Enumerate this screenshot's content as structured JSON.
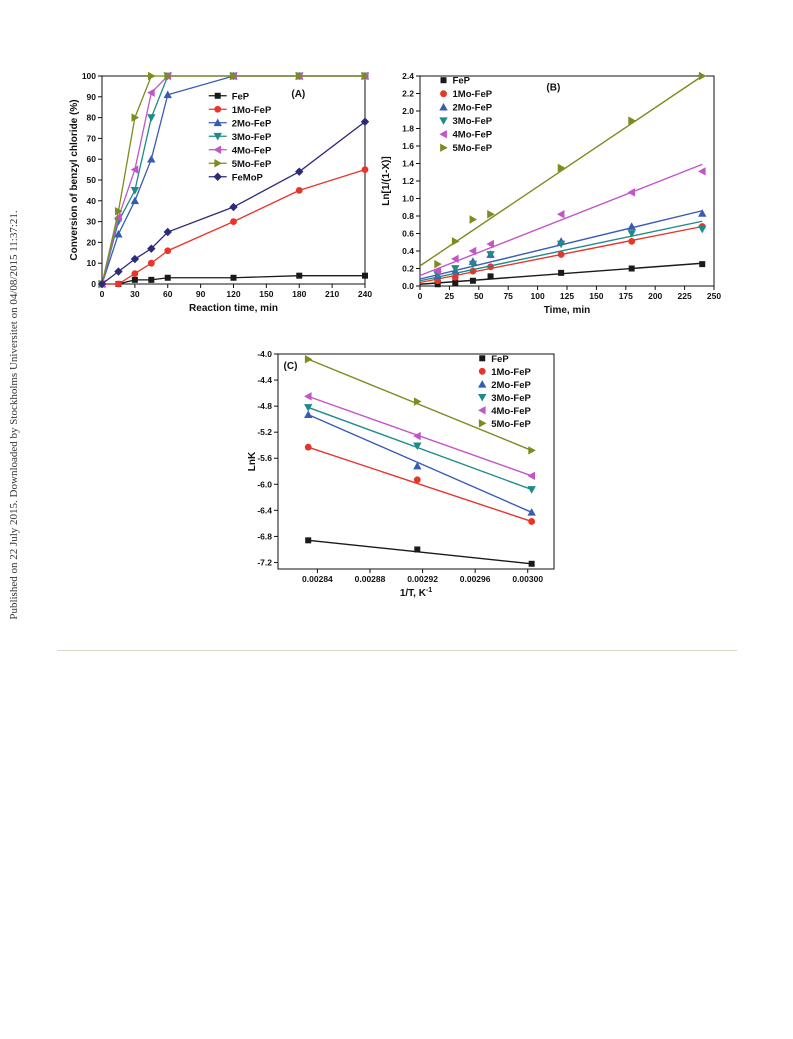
{
  "sidebar_text": "Published on 22 July 2015. Downloaded by Stockholms Universitet on 04/08/2015 11:37:21.",
  "chart_data": [
    {
      "id": "A",
      "type": "line",
      "panel_label": "(A)",
      "xlabel": "Reaction time, min",
      "ylabel": "Conversion of benzyl chloride (%)",
      "xlim": [
        0,
        240
      ],
      "ylim": [
        0,
        100
      ],
      "xticks": [
        0,
        30,
        60,
        90,
        120,
        150,
        180,
        210,
        240
      ],
      "yticks": [
        0,
        10,
        20,
        30,
        40,
        50,
        60,
        70,
        80,
        90,
        100
      ],
      "legend_position": "center",
      "series": [
        {
          "name": "FeP",
          "color": "#1a1a1a",
          "marker": "square",
          "x": [
            0,
            15,
            30,
            45,
            60,
            120,
            180,
            240
          ],
          "y": [
            0,
            0,
            2,
            2,
            3,
            3,
            4,
            4
          ]
        },
        {
          "name": "1Mo-FeP",
          "color": "#e8352b",
          "marker": "circle",
          "x": [
            0,
            15,
            30,
            45,
            60,
            120,
            180,
            240
          ],
          "y": [
            0,
            0,
            5,
            10,
            16,
            30,
            45,
            55
          ]
        },
        {
          "name": "2Mo-FeP",
          "color": "#3a5bb5",
          "marker": "triangle-up",
          "x": [
            0,
            15,
            30,
            45,
            60,
            120,
            180,
            240
          ],
          "y": [
            0,
            24,
            40,
            60,
            91,
            100,
            100,
            100
          ]
        },
        {
          "name": "3Mo-FeP",
          "color": "#1e8a8a",
          "marker": "triangle-down",
          "x": [
            0,
            15,
            30,
            45,
            60,
            120,
            180,
            240
          ],
          "y": [
            0,
            30,
            45,
            80,
            100,
            100,
            100,
            100
          ]
        },
        {
          "name": "4Mo-FeP",
          "color": "#c255c8",
          "marker": "triangle-left",
          "x": [
            0,
            15,
            30,
            45,
            60,
            120,
            180,
            240
          ],
          "y": [
            0,
            32,
            55,
            92,
            100,
            100,
            100,
            100
          ]
        },
        {
          "name": "5Mo-FeP",
          "color": "#7d8b1f",
          "marker": "triangle-right",
          "x": [
            0,
            15,
            30,
            45,
            60,
            120,
            180,
            240
          ],
          "y": [
            0,
            35,
            80,
            100,
            100,
            100,
            100,
            100
          ]
        },
        {
          "name": "FeMoP",
          "color": "#2d2a7a",
          "marker": "diamond",
          "x": [
            0,
            15,
            30,
            45,
            60,
            120,
            180,
            240
          ],
          "y": [
            0,
            6,
            12,
            17,
            25,
            37,
            54,
            78
          ]
        }
      ]
    },
    {
      "id": "B",
      "type": "scatter",
      "panel_label": "(B)",
      "xlabel": "Time, min",
      "ylabel": "Ln[1/(1-X)]",
      "xlim": [
        0,
        250
      ],
      "ylim": [
        0,
        2.4
      ],
      "xticks": [
        0,
        25,
        50,
        75,
        100,
        125,
        150,
        175,
        200,
        225,
        250
      ],
      "yticks": [
        0.0,
        0.2,
        0.4,
        0.6,
        0.8,
        1.0,
        1.2,
        1.4,
        1.6,
        1.8,
        2.0,
        2.2,
        2.4
      ],
      "legend_position": "top-left",
      "series": [
        {
          "name": "FeP",
          "color": "#1a1a1a",
          "marker": "square",
          "x": [
            15,
            30,
            45,
            60,
            120,
            180,
            240
          ],
          "y": [
            0.02,
            0.04,
            0.06,
            0.11,
            0.15,
            0.2,
            0.25
          ],
          "fit": [
            [
              0,
              0.02
            ],
            [
              240,
              0.26
            ]
          ]
        },
        {
          "name": "1Mo-FeP",
          "color": "#e8352b",
          "marker": "circle",
          "x": [
            15,
            30,
            45,
            60,
            120,
            180,
            240
          ],
          "y": [
            0.06,
            0.1,
            0.17,
            0.22,
            0.36,
            0.51,
            0.68
          ],
          "fit": [
            [
              0,
              0.04
            ],
            [
              240,
              0.68
            ]
          ]
        },
        {
          "name": "2Mo-FeP",
          "color": "#3a5bb5",
          "marker": "triangle-up",
          "x": [
            15,
            30,
            45,
            60,
            120,
            180,
            240
          ],
          "y": [
            0.12,
            0.17,
            0.28,
            0.36,
            0.51,
            0.68,
            0.83
          ],
          "fit": [
            [
              0,
              0.08
            ],
            [
              240,
              0.86
            ]
          ]
        },
        {
          "name": "3Mo-FeP",
          "color": "#1e8a8a",
          "marker": "triangle-down",
          "x": [
            15,
            30,
            45,
            60,
            120,
            180,
            240
          ],
          "y": [
            0.13,
            0.2,
            0.25,
            0.36,
            0.48,
            0.6,
            0.65
          ],
          "fit": [
            [
              0,
              0.06
            ],
            [
              240,
              0.74
            ]
          ]
        },
        {
          "name": "4Mo-FeP",
          "color": "#c255c8",
          "marker": "triangle-left",
          "x": [
            15,
            30,
            45,
            60,
            120,
            180,
            240
          ],
          "y": [
            0.17,
            0.31,
            0.4,
            0.48,
            0.82,
            1.07,
            1.31
          ],
          "fit": [
            [
              0,
              0.12
            ],
            [
              240,
              1.39
            ]
          ]
        },
        {
          "name": "5Mo-FeP",
          "color": "#7d8b1f",
          "marker": "triangle-right",
          "x": [
            15,
            30,
            45,
            60,
            120,
            180,
            240
          ],
          "y": [
            0.25,
            0.51,
            0.76,
            0.82,
            1.35,
            1.89,
            2.4
          ],
          "fit": [
            [
              0,
              0.23
            ],
            [
              240,
              2.4
            ]
          ]
        }
      ]
    },
    {
      "id": "C",
      "type": "scatter",
      "panel_label": "(C)",
      "xlabel": "1/T, K",
      "xlabel_sup": "-1",
      "ylabel": "LnK",
      "xlim": [
        0.00281,
        0.00302
      ],
      "ylim": [
        -7.3,
        -4.0
      ],
      "xticks": [
        0.00284,
        0.00288,
        0.00292,
        0.00296,
        0.003
      ],
      "xtick_labels": [
        "0.00284",
        "0.00288",
        "0.00292",
        "0.00296",
        "0.00300"
      ],
      "yticks": [
        -4.0,
        -4.4,
        -4.8,
        -5.2,
        -5.6,
        -6.0,
        -6.4,
        -6.8,
        -7.2
      ],
      "ytick_labels": [
        "-4.0",
        "-4.4",
        "-4.8",
        "-5.2",
        "-5.6",
        "-6.0",
        "-6.4",
        "-6.8",
        "-7.2"
      ],
      "legend_position": "top-right",
      "series": [
        {
          "name": "FeP",
          "color": "#1a1a1a",
          "marker": "square",
          "x": [
            0.002833,
            0.002916,
            0.003003
          ],
          "y": [
            -6.86,
            -7.0,
            -7.22
          ]
        },
        {
          "name": "1Mo-FeP",
          "color": "#e8352b",
          "marker": "circle",
          "x": [
            0.002833,
            0.002916,
            0.003003
          ],
          "y": [
            -5.43,
            -5.93,
            -6.57
          ]
        },
        {
          "name": "2Mo-FeP",
          "color": "#3a5bb5",
          "marker": "triangle-up",
          "x": [
            0.002833,
            0.002916,
            0.003003
          ],
          "y": [
            -4.93,
            -5.72,
            -6.43
          ]
        },
        {
          "name": "3Mo-FeP",
          "color": "#1e8a8a",
          "marker": "triangle-down",
          "x": [
            0.002833,
            0.002916,
            0.003003
          ],
          "y": [
            -4.82,
            -5.41,
            -6.08
          ]
        },
        {
          "name": "4Mo-FeP",
          "color": "#c255c8",
          "marker": "triangle-left",
          "x": [
            0.002833,
            0.002916,
            0.003003
          ],
          "y": [
            -4.65,
            -5.26,
            -5.87
          ]
        },
        {
          "name": "5Mo-FeP",
          "color": "#7d8b1f",
          "marker": "triangle-right",
          "x": [
            0.002833,
            0.002916,
            0.003003
          ],
          "y": [
            -4.08,
            -4.73,
            -5.48
          ]
        }
      ]
    }
  ]
}
